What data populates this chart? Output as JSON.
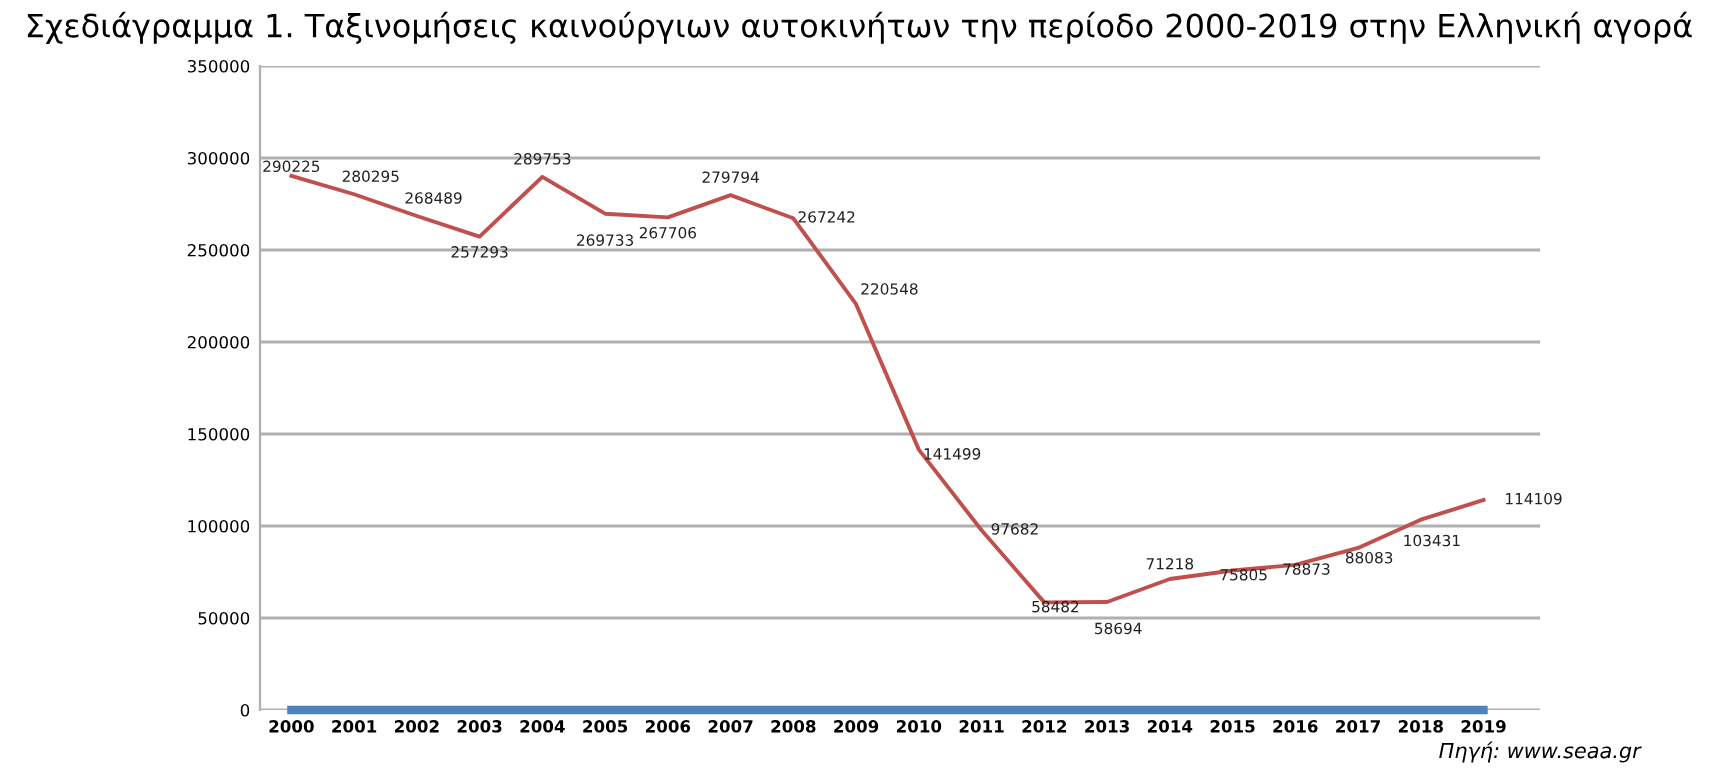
{
  "chart_data": {
    "type": "line",
    "title": "Σχεδιάγραμμα 1. Ταξινομήσεις καινούργιων αυτοκινήτων την περίοδο 2000-2019 στην Ελληνική αγορά",
    "categories": [
      "2000",
      "2001",
      "2002",
      "2003",
      "2004",
      "2005",
      "2006",
      "2007",
      "2008",
      "2009",
      "2010",
      "2011",
      "2012",
      "2013",
      "2014",
      "2015",
      "2016",
      "2017",
      "2018",
      "2019"
    ],
    "series": [
      {
        "color": "#c0504d",
        "values": [
          290225,
          280295,
          268489,
          257293,
          289753,
          269733,
          267706,
          279794,
          267242,
          220548,
          141499,
          97682,
          58482,
          58694,
          71218,
          75805,
          78873,
          88083,
          103431,
          114109
        ],
        "value_labels": [
          "290225",
          "280295",
          "268489",
          "257293",
          "289753",
          "269733",
          "267706",
          "279794",
          "267242",
          "220548",
          "141499",
          "97682",
          "58482",
          "58694",
          "71218",
          "75805",
          "78873",
          "88083",
          "103431",
          "114109"
        ]
      },
      {
        "color": "#4f81bd",
        "values": [
          0,
          0,
          0,
          0,
          0,
          0,
          0,
          0,
          0,
          0,
          0,
          0,
          0,
          0,
          0,
          0,
          0,
          0,
          0,
          0
        ]
      }
    ],
    "ylim": [
      0,
      350000
    ],
    "yticks": [
      0,
      50000,
      100000,
      150000,
      200000,
      250000,
      300000,
      350000
    ],
    "grid": "y",
    "marker": "none",
    "line_style": "solid",
    "annotations": [
      "Πηγή: www.seaa.gr"
    ]
  }
}
